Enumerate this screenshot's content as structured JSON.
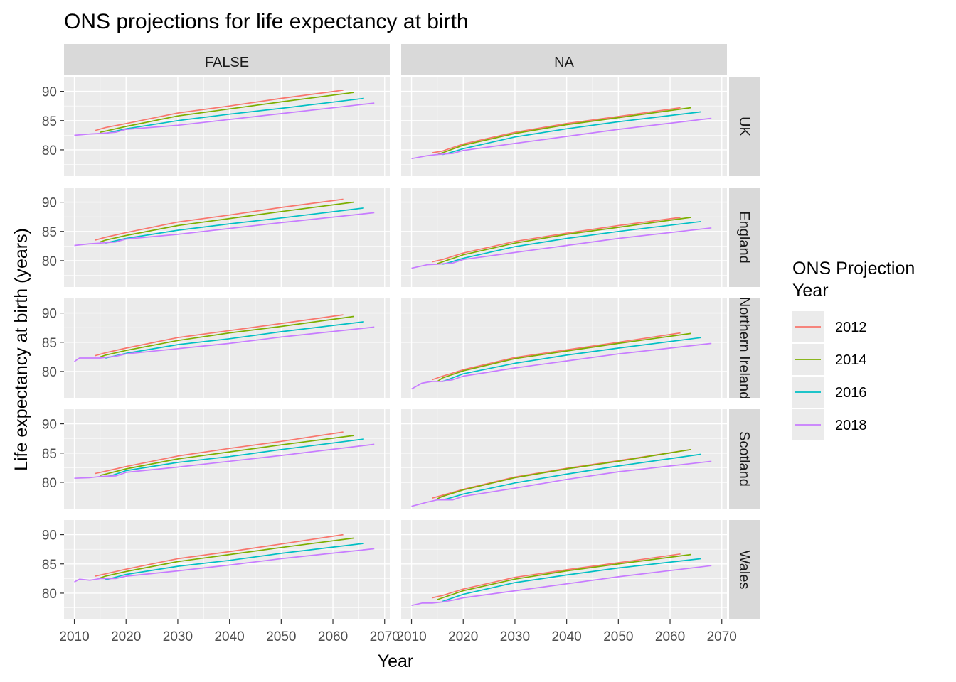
{
  "chart_data": {
    "type": "line",
    "title": "ONS projections for life expectancy at birth",
    "xlabel": "Year",
    "ylabel": "Life expectancy at birth (years)",
    "xlim": [
      2008,
      2071
    ],
    "ylim": [
      75.5,
      92.5
    ],
    "x_ticks": [
      2010,
      2020,
      2030,
      2040,
      2050,
      2060,
      2070
    ],
    "y_ticks": [
      80,
      85,
      90
    ],
    "facet_columns": [
      "FALSE",
      "NA"
    ],
    "facet_rows": [
      "UK",
      "England",
      "Northern Ireland",
      "Scotland",
      "Wales"
    ],
    "legend": {
      "title_lines": [
        "ONS Projection",
        "Year"
      ],
      "placement": "right",
      "entries": [
        {
          "label": "2012",
          "color": "#F8766D"
        },
        {
          "label": "2014",
          "color": "#7CAE00"
        },
        {
          "label": "2016",
          "color": "#00BFC4"
        },
        {
          "label": "2018",
          "color": "#C77CFF"
        }
      ]
    },
    "grid": true,
    "panels": [
      {
        "row": "UK",
        "col": "FALSE",
        "series": [
          {
            "name": "2012",
            "x": [
              2014,
              2016,
              2020,
              2030,
              2040,
              2050,
              2062
            ],
            "y": [
              83.3,
              83.8,
              84.5,
              86.3,
              87.5,
              88.8,
              90.2
            ]
          },
          {
            "name": "2014",
            "x": [
              2015,
              2016,
              2020,
              2030,
              2040,
              2050,
              2064
            ],
            "y": [
              83.0,
              83.2,
              84.0,
              85.8,
              87.0,
              88.2,
              89.8
            ]
          },
          {
            "name": "2016",
            "x": [
              2016,
              2017,
              2020,
              2030,
              2040,
              2050,
              2066
            ],
            "y": [
              82.8,
              83.0,
              83.6,
              85.0,
              86.1,
              87.1,
              88.8
            ]
          },
          {
            "name": "2018",
            "x": [
              2010,
              2013,
              2015,
              2018,
              2020,
              2030,
              2040,
              2050,
              2068
            ],
            "y": [
              82.5,
              82.7,
              82.8,
              83.0,
              83.5,
              84.2,
              85.2,
              86.2,
              88.0
            ]
          }
        ]
      },
      {
        "row": "UK",
        "col": "NA",
        "series": [
          {
            "name": "2012",
            "x": [
              2014,
              2016,
              2020,
              2030,
              2040,
              2050,
              2062
            ],
            "y": [
              79.5,
              79.8,
              81.0,
              83.0,
              84.5,
              85.7,
              87.2
            ]
          },
          {
            "name": "2014",
            "x": [
              2015,
              2016,
              2020,
              2030,
              2040,
              2050,
              2064
            ],
            "y": [
              79.2,
              79.5,
              80.8,
              82.8,
              84.3,
              85.5,
              87.2
            ]
          },
          {
            "name": "2016",
            "x": [
              2016,
              2017,
              2020,
              2030,
              2040,
              2050,
              2066
            ],
            "y": [
              79.2,
              79.4,
              80.2,
              82.2,
              83.6,
              84.8,
              86.5
            ]
          },
          {
            "name": "2018",
            "x": [
              2010,
              2013,
              2015,
              2018,
              2020,
              2030,
              2040,
              2050,
              2068
            ],
            "y": [
              78.5,
              79.0,
              79.2,
              79.4,
              79.9,
              81.1,
              82.3,
              83.5,
              85.4
            ]
          }
        ]
      },
      {
        "row": "England",
        "col": "FALSE",
        "series": [
          {
            "name": "2012",
            "x": [
              2014,
              2016,
              2020,
              2030,
              2040,
              2050,
              2062
            ],
            "y": [
              83.5,
              84.0,
              84.8,
              86.6,
              87.8,
              89.1,
              90.5
            ]
          },
          {
            "name": "2014",
            "x": [
              2015,
              2016,
              2020,
              2030,
              2040,
              2050,
              2064
            ],
            "y": [
              83.2,
              83.5,
              84.3,
              86.0,
              87.2,
              88.4,
              90.0
            ]
          },
          {
            "name": "2016",
            "x": [
              2016,
              2017,
              2020,
              2030,
              2040,
              2050,
              2066
            ],
            "y": [
              83.0,
              83.2,
              83.8,
              85.2,
              86.3,
              87.3,
              89.0
            ]
          },
          {
            "name": "2018",
            "x": [
              2010,
              2013,
              2015,
              2018,
              2020,
              2030,
              2040,
              2050,
              2068
            ],
            "y": [
              82.6,
              82.9,
              83.0,
              83.2,
              83.7,
              84.5,
              85.5,
              86.5,
              88.2
            ]
          }
        ]
      },
      {
        "row": "England",
        "col": "NA",
        "series": [
          {
            "name": "2012",
            "x": [
              2014,
              2016,
              2020,
              2030,
              2040,
              2050,
              2062
            ],
            "y": [
              79.8,
              80.2,
              81.3,
              83.3,
              84.7,
              86.0,
              87.4
            ]
          },
          {
            "name": "2014",
            "x": [
              2015,
              2016,
              2020,
              2030,
              2040,
              2050,
              2064
            ],
            "y": [
              79.5,
              79.8,
              81.0,
              83.0,
              84.5,
              85.7,
              87.4
            ]
          },
          {
            "name": "2016",
            "x": [
              2016,
              2017,
              2020,
              2030,
              2040,
              2050,
              2066
            ],
            "y": [
              79.4,
              79.6,
              80.4,
              82.4,
              83.8,
              85.0,
              86.7
            ]
          },
          {
            "name": "2018",
            "x": [
              2010,
              2013,
              2015,
              2018,
              2020,
              2030,
              2040,
              2050,
              2068
            ],
            "y": [
              78.7,
              79.3,
              79.4,
              79.6,
              80.2,
              81.4,
              82.6,
              83.8,
              85.6
            ]
          }
        ]
      },
      {
        "row": "Northern Ireland",
        "col": "FALSE",
        "series": [
          {
            "name": "2012",
            "x": [
              2014,
              2016,
              2020,
              2030,
              2040,
              2050,
              2062
            ],
            "y": [
              82.7,
              83.2,
              84.0,
              85.8,
              87.0,
              88.2,
              89.7
            ]
          },
          {
            "name": "2014",
            "x": [
              2015,
              2016,
              2020,
              2030,
              2040,
              2050,
              2064
            ],
            "y": [
              82.5,
              82.8,
              83.6,
              85.3,
              86.6,
              87.7,
              89.4
            ]
          },
          {
            "name": "2016",
            "x": [
              2016,
              2017,
              2020,
              2030,
              2040,
              2050,
              2066
            ],
            "y": [
              82.3,
              82.5,
              83.1,
              84.6,
              85.6,
              86.8,
              88.5
            ]
          },
          {
            "name": "2018",
            "x": [
              2010,
              2011,
              2013,
              2015,
              2018,
              2020,
              2030,
              2040,
              2050,
              2068
            ],
            "y": [
              81.7,
              82.3,
              82.3,
              82.3,
              82.6,
              83.0,
              83.9,
              84.8,
              85.9,
              87.6
            ]
          }
        ]
      },
      {
        "row": "Northern Ireland",
        "col": "NA",
        "series": [
          {
            "name": "2012",
            "x": [
              2014,
              2016,
              2020,
              2030,
              2040,
              2050,
              2062
            ],
            "y": [
              78.6,
              79.2,
              80.3,
              82.4,
              83.7,
              85.0,
              86.6
            ]
          },
          {
            "name": "2014",
            "x": [
              2015,
              2016,
              2020,
              2030,
              2040,
              2050,
              2064
            ],
            "y": [
              78.3,
              78.9,
              80.1,
              82.2,
              83.5,
              84.8,
              86.5
            ]
          },
          {
            "name": "2016",
            "x": [
              2016,
              2017,
              2020,
              2030,
              2040,
              2050,
              2066
            ],
            "y": [
              78.3,
              78.6,
              79.6,
              81.4,
              82.8,
              84.0,
              85.8
            ]
          },
          {
            "name": "2018",
            "x": [
              2010,
              2012,
              2014,
              2016,
              2018,
              2020,
              2030,
              2040,
              2050,
              2068
            ],
            "y": [
              77.0,
              78.0,
              78.3,
              78.3,
              78.6,
              79.2,
              80.6,
              81.8,
              83.0,
              84.8
            ]
          }
        ]
      },
      {
        "row": "Scotland",
        "col": "FALSE",
        "series": [
          {
            "name": "2012",
            "x": [
              2014,
              2016,
              2020,
              2030,
              2040,
              2050,
              2062
            ],
            "y": [
              81.5,
              81.9,
              82.7,
              84.5,
              85.8,
              87.0,
              88.6
            ]
          },
          {
            "name": "2014",
            "x": [
              2015,
              2016,
              2020,
              2030,
              2040,
              2050,
              2064
            ],
            "y": [
              81.2,
              81.4,
              82.3,
              84.0,
              85.2,
              86.4,
              88.0
            ]
          },
          {
            "name": "2016",
            "x": [
              2016,
              2017,
              2020,
              2030,
              2040,
              2050,
              2066
            ],
            "y": [
              81.0,
              81.1,
              82.0,
              83.4,
              84.4,
              85.6,
              87.4
            ]
          },
          {
            "name": "2018",
            "x": [
              2010,
              2013,
              2015,
              2018,
              2020,
              2030,
              2040,
              2050,
              2068
            ],
            "y": [
              80.7,
              80.8,
              81.0,
              81.1,
              81.7,
              82.6,
              83.6,
              84.6,
              86.5
            ]
          }
        ]
      },
      {
        "row": "Scotland",
        "col": "NA",
        "series": [
          {
            "name": "2012",
            "x": [
              2014,
              2016,
              2020,
              2030,
              2040,
              2050,
              2064
            ],
            "y": [
              77.3,
              77.8,
              78.8,
              80.9,
              82.4,
              83.7,
              85.6
            ]
          },
          {
            "name": "2014",
            "x": [
              2015,
              2016,
              2020,
              2030,
              2040,
              2050,
              2064
            ],
            "y": [
              77.2,
              77.6,
              78.7,
              80.8,
              82.3,
              83.6,
              85.6
            ]
          },
          {
            "name": "2016",
            "x": [
              2016,
              2017,
              2020,
              2030,
              2040,
              2050,
              2066
            ],
            "y": [
              77.0,
              77.2,
              78.0,
              79.9,
              81.4,
              82.8,
              84.8
            ]
          },
          {
            "name": "2018",
            "x": [
              2010,
              2013,
              2015,
              2018,
              2020,
              2030,
              2040,
              2050,
              2068
            ],
            "y": [
              75.9,
              76.6,
              77.0,
              77.0,
              77.6,
              79.0,
              80.5,
              81.8,
              83.6
            ]
          }
        ]
      },
      {
        "row": "Wales",
        "col": "FALSE",
        "series": [
          {
            "name": "2012",
            "x": [
              2014,
              2016,
              2020,
              2030,
              2040,
              2050,
              2062
            ],
            "y": [
              82.9,
              83.3,
              84.1,
              85.9,
              87.1,
              88.4,
              90.0
            ]
          },
          {
            "name": "2014",
            "x": [
              2015,
              2016,
              2020,
              2030,
              2040,
              2050,
              2064
            ],
            "y": [
              82.6,
              82.9,
              83.7,
              85.4,
              86.6,
              87.8,
              89.4
            ]
          },
          {
            "name": "2016",
            "x": [
              2016,
              2017,
              2020,
              2030,
              2040,
              2050,
              2066
            ],
            "y": [
              82.3,
              82.5,
              83.2,
              84.6,
              85.6,
              86.8,
              88.5
            ]
          },
          {
            "name": "2018",
            "x": [
              2010,
              2011,
              2013,
              2015,
              2018,
              2020,
              2030,
              2040,
              2050,
              2068
            ],
            "y": [
              81.9,
              82.4,
              82.2,
              82.5,
              82.5,
              82.9,
              83.8,
              84.8,
              85.9,
              87.6
            ]
          }
        ]
      },
      {
        "row": "Wales",
        "col": "NA",
        "series": [
          {
            "name": "2012",
            "x": [
              2014,
              2016,
              2020,
              2030,
              2040,
              2050,
              2062
            ],
            "y": [
              79.2,
              79.6,
              80.7,
              82.7,
              84.0,
              85.2,
              86.7
            ]
          },
          {
            "name": "2014",
            "x": [
              2015,
              2016,
              2020,
              2030,
              2040,
              2050,
              2064
            ],
            "y": [
              78.9,
              79.2,
              80.4,
              82.4,
              83.8,
              85.0,
              86.6
            ]
          },
          {
            "name": "2016",
            "x": [
              2016,
              2017,
              2020,
              2030,
              2040,
              2050,
              2066
            ],
            "y": [
              78.6,
              78.9,
              79.8,
              81.8,
              83.1,
              84.3,
              85.9
            ]
          },
          {
            "name": "2018",
            "x": [
              2010,
              2012,
              2014,
              2016,
              2018,
              2020,
              2030,
              2040,
              2050,
              2068
            ],
            "y": [
              77.9,
              78.3,
              78.3,
              78.5,
              78.8,
              79.2,
              80.4,
              81.6,
              82.8,
              84.7
            ]
          }
        ]
      }
    ]
  }
}
